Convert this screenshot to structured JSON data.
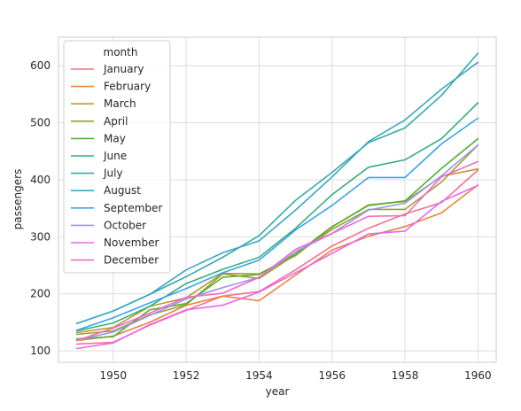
{
  "chart_data": {
    "type": "line",
    "title": "",
    "xlabel": "year",
    "ylabel": "passengers",
    "xlim": [
      1948.5,
      1960.5
    ],
    "ylim": [
      80,
      650
    ],
    "xticks": [
      1950,
      1952,
      1954,
      1956,
      1958,
      1960
    ],
    "yticks": [
      100,
      200,
      300,
      400,
      500,
      600
    ],
    "grid": true,
    "legend": {
      "title": "month",
      "placement": "top-left"
    },
    "x": [
      1949,
      1950,
      1951,
      1952,
      1953,
      1954,
      1955,
      1956,
      1957,
      1958,
      1959,
      1960
    ],
    "series": [
      {
        "name": "January",
        "color": "#f77189",
        "values": [
          112,
          115,
          145,
          171,
          196,
          204,
          242,
          284,
          315,
          340,
          360,
          417
        ]
      },
      {
        "name": "February",
        "color": "#e8843a",
        "values": [
          118,
          126,
          150,
          180,
          196,
          188,
          233,
          277,
          301,
          318,
          342,
          391
        ]
      },
      {
        "name": "March",
        "color": "#bb9832",
        "values": [
          132,
          141,
          178,
          193,
          236,
          235,
          267,
          317,
          356,
          362,
          406,
          419
        ]
      },
      {
        "name": "April",
        "color": "#97a431",
        "values": [
          129,
          135,
          163,
          181,
          235,
          227,
          269,
          313,
          348,
          348,
          396,
          461
        ]
      },
      {
        "name": "May",
        "color": "#50b131",
        "values": [
          121,
          125,
          172,
          183,
          229,
          234,
          270,
          318,
          355,
          363,
          420,
          472
        ]
      },
      {
        "name": "June",
        "color": "#33b07a",
        "values": [
          135,
          149,
          178,
          218,
          243,
          264,
          315,
          374,
          422,
          435,
          472,
          535
        ]
      },
      {
        "name": "July",
        "color": "#35aca4",
        "values": [
          148,
          170,
          199,
          230,
          264,
          302,
          364,
          413,
          465,
          491,
          548,
          622
        ]
      },
      {
        "name": "August",
        "color": "#38a8c5",
        "values": [
          148,
          170,
          199,
          242,
          272,
          293,
          347,
          405,
          467,
          505,
          559,
          606
        ]
      },
      {
        "name": "September",
        "color": "#3ba3ec",
        "values": [
          136,
          158,
          184,
          209,
          237,
          259,
          312,
          355,
          404,
          404,
          463,
          508
        ]
      },
      {
        "name": "October",
        "color": "#9c91f4",
        "values": [
          119,
          133,
          162,
          191,
          211,
          229,
          274,
          306,
          347,
          359,
          407,
          461
        ]
      },
      {
        "name": "November",
        "color": "#e866f4",
        "values": [
          104,
          114,
          146,
          172,
          180,
          203,
          237,
          271,
          305,
          310,
          362,
          390
        ]
      },
      {
        "name": "December",
        "color": "#f668c2",
        "values": [
          118,
          140,
          166,
          194,
          201,
          229,
          278,
          306,
          336,
          337,
          405,
          432
        ]
      }
    ]
  }
}
